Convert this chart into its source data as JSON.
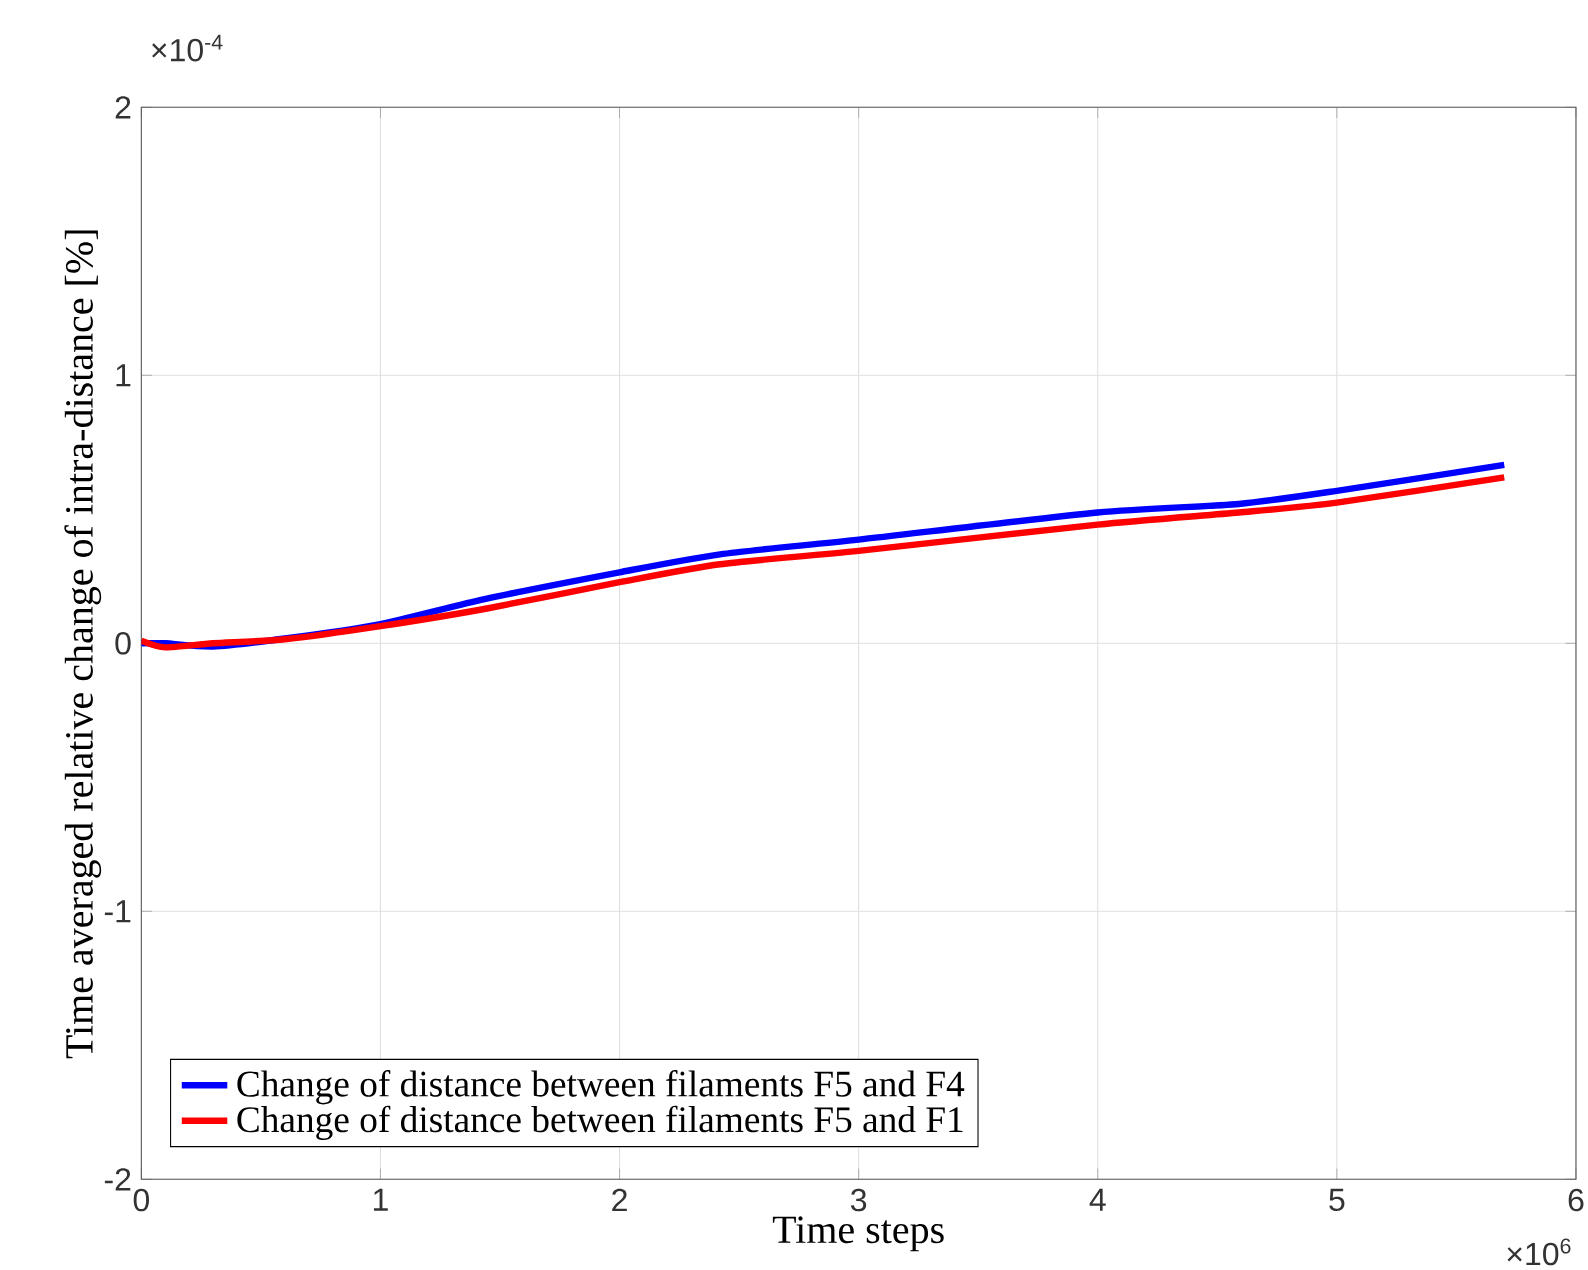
{
  "chart_data": {
    "type": "line",
    "xlabel": "Time steps",
    "ylabel": "Time averaged relative change of intra-distance [%]",
    "xlim": [
      0,
      6
    ],
    "ylim": [
      -2,
      2
    ],
    "xticks": [
      0,
      1,
      2,
      3,
      4,
      5,
      6
    ],
    "yticks": [
      -2,
      -1,
      0,
      1,
      2
    ],
    "grid": true,
    "legend": "bottom left",
    "line_style": "solid",
    "marker": "none",
    "annotations": [
      "×10$^{-4}$",
      "×10$^{6}$"
    ],
    "series": [
      {
        "name": "Change of distance between filaments F5 and F4",
        "color": "#0000ff",
        "x": [
          0,
          0.1,
          0.3,
          0.6,
          1.0,
          1.44,
          2.0,
          2.42,
          3.0,
          4.0,
          4.59,
          5.0,
          5.7
        ],
        "values": [
          0,
          0,
          -0.012,
          0.018,
          0.072,
          0.166,
          0.265,
          0.332,
          0.387,
          0.488,
          0.52,
          0.569,
          0.666
        ]
      },
      {
        "name": "Change of distance between filaments F5 and F1",
        "color": "#ff0000",
        "x": [
          0,
          0.1,
          0.3,
          0.6,
          1.0,
          1.44,
          2.0,
          2.42,
          3.0,
          4.0,
          4.59,
          5.0,
          5.7
        ],
        "values": [
          0.01,
          -0.015,
          0.0,
          0.015,
          0.064,
          0.129,
          0.228,
          0.295,
          0.345,
          0.443,
          0.488,
          0.525,
          0.619
        ]
      }
    ]
  }
}
